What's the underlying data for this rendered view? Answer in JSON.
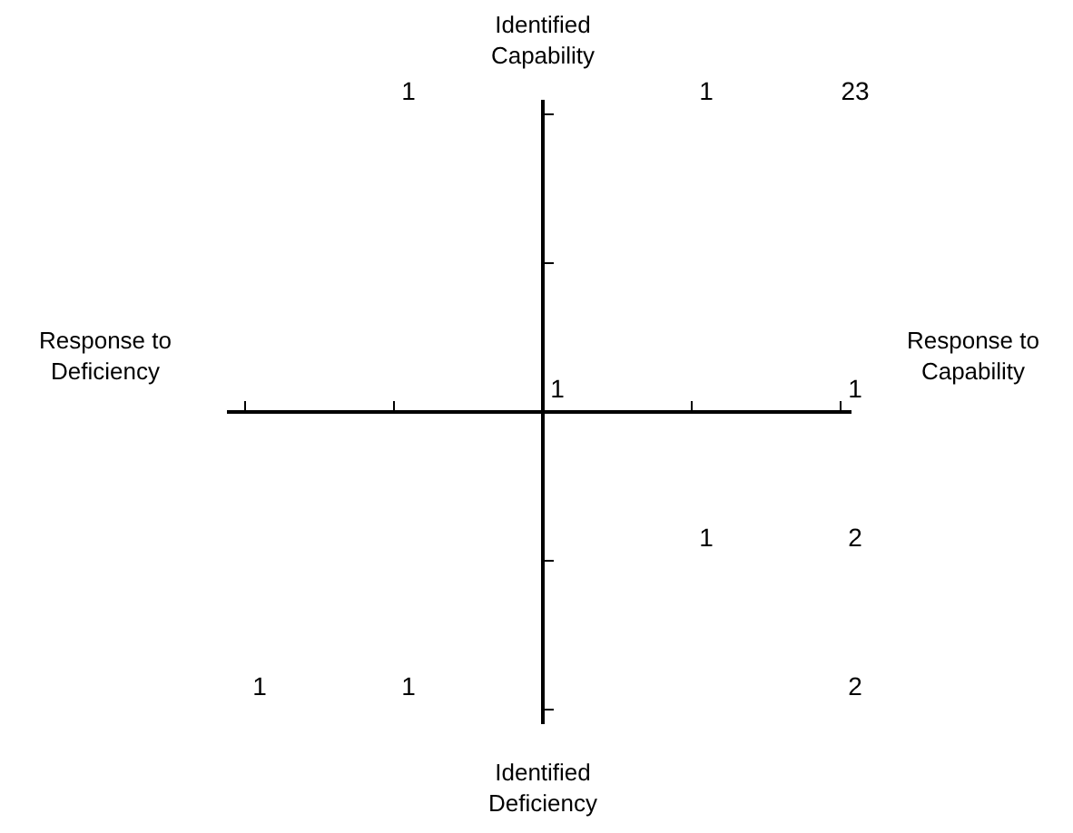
{
  "chart_data": {
    "type": "other",
    "data_labels": true,
    "categories": [
      null,
      null,
      null,
      null,
      null,
      null,
      null,
      null,
      null,
      null
    ],
    "values": [
      1,
      1,
      23,
      1,
      1,
      1,
      2,
      1,
      1,
      2
    ],
    "annotations": [
      "Identified\nCapability",
      "Response to\nCapability",
      "Identified\nDeficiency",
      "Response to\nDeficiency"
    ]
  }
}
